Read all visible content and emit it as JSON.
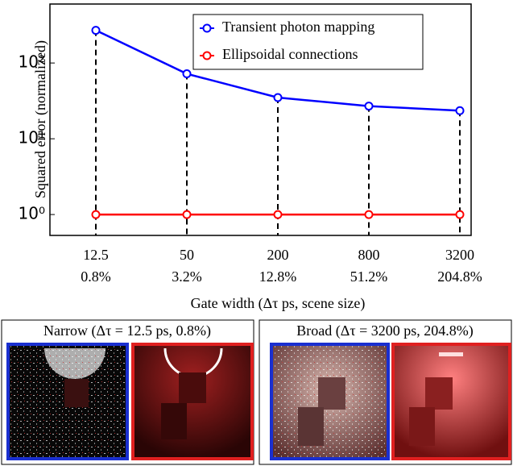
{
  "chart_data": {
    "type": "line",
    "y_label": "Squared error (normalized)",
    "x_label": "Gate width (Δτ ps, scene size)",
    "categories": [
      "12.5",
      "50",
      "200",
      "800",
      "3200"
    ],
    "category_sublabels": [
      "0.8%",
      "3.2%",
      "12.8%",
      "51.2%",
      "204.8%"
    ],
    "series": [
      {
        "name": "Transient photon mapping",
        "color": "#0000ff",
        "values": [
          270,
          72,
          35,
          27,
          23.5
        ]
      },
      {
        "name": "Ellipsoidal connections",
        "color": "#ff0000",
        "values": [
          1,
          1,
          1,
          1,
          1
        ]
      }
    ],
    "log_y": true,
    "ylim": [
      0.53,
      600
    ],
    "yticks": [
      {
        "value": 1,
        "label": "10⁰"
      },
      {
        "value": 10,
        "label": "10¹"
      },
      {
        "value": 100,
        "label": "10²"
      }
    ],
    "legend": "upper right",
    "drop_lines": true
  },
  "panels": [
    {
      "title": "Narrow (Δτ = 12.5 ps, 0.8%)"
    },
    {
      "title": "Broad (Δτ = 3200 ps, 204.8%)"
    }
  ]
}
